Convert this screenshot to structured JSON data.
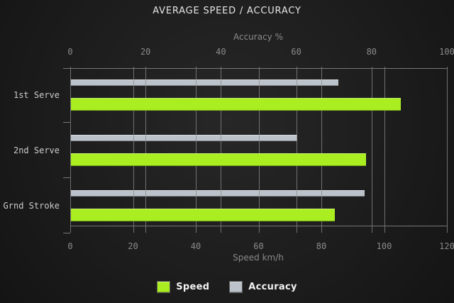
{
  "title": "AVERAGE SPEED / ACCURACY",
  "chart_data": {
    "type": "bar",
    "orientation": "horizontal",
    "categories": [
      "1st Serve",
      "2nd Serve",
      "Grnd Stroke"
    ],
    "series": [
      {
        "name": "Speed",
        "axis": "bottom",
        "color": "#aaee22",
        "values": [
          105,
          94,
          84
        ]
      },
      {
        "name": "Accuracy",
        "axis": "top",
        "color": "#bbc2c9",
        "values": [
          71,
          60,
          78
        ]
      }
    ],
    "axes": {
      "top": {
        "label": "Accuracy %",
        "min": 0,
        "max": 100,
        "ticks": [
          0,
          20,
          40,
          60,
          80,
          100
        ]
      },
      "bottom": {
        "label": "Speed km/h",
        "min": 0,
        "max": 120,
        "ticks": [
          0,
          20,
          40,
          60,
          80,
          100,
          120
        ]
      }
    },
    "grid": true,
    "legend_position": "bottom-center"
  },
  "colors": {
    "speed": "#aaee22",
    "accuracy": "#bbc2c9",
    "gridline": "#8c8c8c",
    "frame": "#777777",
    "text_muted": "#8a8a8a",
    "text_category": "#cccccc",
    "text_title": "#e6e6e6"
  }
}
